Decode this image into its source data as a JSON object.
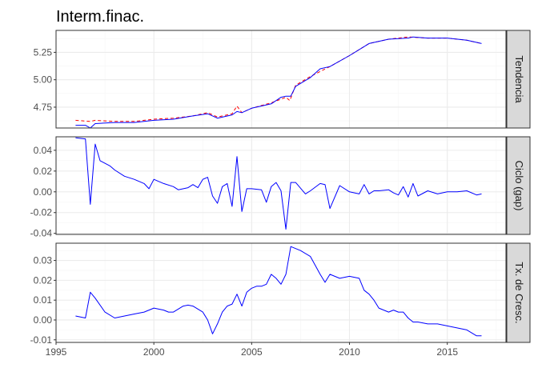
{
  "chart_data": {
    "type": "line",
    "title": "Interm.finac.",
    "x_ticks": [
      1995,
      2000,
      2005,
      2010,
      2015
    ],
    "xlim": [
      1995,
      2018
    ],
    "grid": true,
    "colors": {
      "observed": "#ff0000",
      "fitted": "#0000ff",
      "strip_fill": "#d9d9d9",
      "grid_major": "#ebebeb",
      "grid_minor": "#f5f5f5"
    },
    "panels": [
      {
        "strip": "Tendencia",
        "ylim": [
          4.56,
          5.45
        ],
        "y_ticks": [
          4.75,
          5.0,
          5.25
        ],
        "y_tick_labels": [
          "4.75",
          "5.00",
          "5.25"
        ],
        "series": [
          {
            "style": "dashed",
            "color": "#ff0000",
            "x": [
              1996.0,
              1996.75,
              1997.0,
              1998.0,
              1999.0,
              2000.0,
              2001.0,
              2002.0,
              2002.75,
              2003.25,
              2004.0,
              2004.25,
              2004.5,
              2005.0,
              2006.0,
              2006.75,
              2006.95,
              2007.25,
              2008.0,
              2009.0,
              2010.0,
              2011.0,
              2012.0,
              2013.0,
              2014.0,
              2015.0,
              2016.0,
              2016.75
            ],
            "y": [
              4.63,
              4.62,
              4.63,
              4.62,
              4.62,
              4.64,
              4.65,
              4.67,
              4.7,
              4.66,
              4.69,
              4.76,
              4.7,
              4.74,
              4.79,
              4.84,
              4.81,
              4.95,
              5.03,
              5.12,
              5.22,
              5.33,
              5.37,
              5.39,
              5.38,
              5.38,
              5.36,
              5.33
            ]
          },
          {
            "style": "solid",
            "color": "#0000ff",
            "x": [
              1996.0,
              1996.5,
              1996.75,
              1997.0,
              1998.0,
              1999.0,
              2000.0,
              2001.0,
              2002.0,
              2002.75,
              2003.25,
              2004.0,
              2004.25,
              2004.5,
              2005.0,
              2006.0,
              2006.5,
              2006.75,
              2007.0,
              2007.25,
              2008.0,
              2008.5,
              2009.0,
              2010.0,
              2011.0,
              2012.0,
              2013.0,
              2013.25,
              2014.0,
              2015.0,
              2016.0,
              2016.75
            ],
            "y": [
              4.585,
              4.585,
              4.56,
              4.6,
              4.61,
              4.61,
              4.63,
              4.64,
              4.67,
              4.69,
              4.65,
              4.68,
              4.71,
              4.7,
              4.74,
              4.78,
              4.84,
              4.85,
              4.85,
              4.94,
              5.02,
              5.1,
              5.12,
              5.22,
              5.33,
              5.37,
              5.38,
              5.39,
              5.38,
              5.38,
              5.36,
              5.33
            ]
          }
        ]
      },
      {
        "strip": "Ciclo (gap)",
        "ylim": [
          -0.041,
          0.053
        ],
        "y_ticks": [
          -0.04,
          -0.02,
          0.0,
          0.02,
          0.04
        ],
        "y_tick_labels": [
          "-0.04",
          "-0.02",
          "0.00",
          "0.02",
          "0.04"
        ],
        "series": [
          {
            "style": "solid",
            "color": "#0000ff",
            "x": [
              1996.0,
              1996.5,
              1996.75,
              1997.0,
              1997.25,
              1997.75,
              1998.0,
              1998.5,
              1999.0,
              1999.5,
              1999.75,
              2000.0,
              2000.5,
              2001.0,
              2001.25,
              2001.75,
              2002.0,
              2002.25,
              2002.5,
              2002.75,
              2003.0,
              2003.25,
              2003.5,
              2003.75,
              2004.0,
              2004.25,
              2004.5,
              2004.75,
              2005.0,
              2005.5,
              2005.75,
              2006.0,
              2006.25,
              2006.5,
              2006.75,
              2007.0,
              2007.25,
              2007.75,
              2008.0,
              2008.5,
              2008.75,
              2009.0,
              2009.5,
              2010.0,
              2010.5,
              2010.75,
              2011.0,
              2011.25,
              2011.5,
              2012.0,
              2012.25,
              2012.5,
              2012.75,
              2013.0,
              2013.25,
              2013.5,
              2014.0,
              2014.5,
              2015.0,
              2015.5,
              2016.0,
              2016.5,
              2016.75
            ],
            "y": [
              0.052,
              0.051,
              -0.012,
              0.046,
              0.03,
              0.025,
              0.021,
              0.015,
              0.012,
              0.008,
              0.003,
              0.012,
              0.008,
              0.005,
              0.002,
              0.004,
              0.007,
              0.004,
              0.012,
              0.014,
              -0.004,
              -0.011,
              0.005,
              0.008,
              -0.014,
              0.034,
              -0.019,
              0.003,
              0.003,
              0.002,
              -0.01,
              0.005,
              0.009,
              0.001,
              -0.036,
              0.009,
              0.009,
              -0.002,
              0.001,
              0.008,
              0.007,
              -0.016,
              0.006,
              0.0,
              -0.002,
              0.007,
              -0.002,
              0.001,
              0.001,
              0.002,
              -0.001,
              -0.003,
              0.005,
              -0.005,
              0.008,
              -0.004,
              0.001,
              -0.002,
              0.0,
              0.0,
              0.001,
              -0.003,
              -0.002
            ]
          }
        ]
      },
      {
        "strip": "Tx. de Cresc.",
        "ylim": [
          -0.0113,
          0.0387
        ],
        "y_ticks": [
          -0.01,
          0.0,
          0.01,
          0.02,
          0.03
        ],
        "y_tick_labels": [
          "-0.01",
          "0.00",
          "0.01",
          "0.02",
          "0.03"
        ],
        "series": [
          {
            "style": "solid",
            "color": "#0000ff",
            "x": [
              1996.0,
              1996.5,
              1996.75,
              1997.0,
              1997.5,
              1998.0,
              1998.5,
              1999.0,
              1999.5,
              2000.0,
              2000.5,
              2000.75,
              2001.0,
              2001.5,
              2001.75,
              2002.0,
              2002.5,
              2002.75,
              2003.0,
              2003.25,
              2003.5,
              2003.75,
              2004.0,
              2004.25,
              2004.5,
              2004.75,
              2005.0,
              2005.25,
              2005.5,
              2005.75,
              2006.0,
              2006.25,
              2006.5,
              2006.75,
              2007.0,
              2007.5,
              2008.0,
              2008.5,
              2008.75,
              2009.0,
              2009.5,
              2010.0,
              2010.5,
              2010.75,
              2011.0,
              2011.25,
              2011.5,
              2012.0,
              2012.25,
              2012.5,
              2012.75,
              2013.0,
              2013.25,
              2013.5,
              2014.0,
              2014.5,
              2015.0,
              2015.5,
              2016.0,
              2016.5,
              2016.75
            ],
            "y": [
              0.002,
              0.001,
              0.014,
              0.011,
              0.004,
              0.001,
              0.002,
              0.003,
              0.004,
              0.006,
              0.005,
              0.004,
              0.004,
              0.007,
              0.0075,
              0.007,
              0.004,
              0.0,
              -0.007,
              -0.002,
              0.004,
              0.007,
              0.008,
              0.013,
              0.007,
              0.014,
              0.016,
              0.017,
              0.017,
              0.018,
              0.023,
              0.021,
              0.018,
              0.023,
              0.037,
              0.035,
              0.032,
              0.023,
              0.019,
              0.023,
              0.021,
              0.022,
              0.021,
              0.015,
              0.013,
              0.01,
              0.006,
              0.004,
              0.005,
              0.004,
              0.004,
              0.001,
              -0.001,
              -0.001,
              -0.002,
              -0.002,
              -0.003,
              -0.004,
              -0.005,
              -0.008,
              -0.008
            ]
          }
        ]
      }
    ]
  }
}
